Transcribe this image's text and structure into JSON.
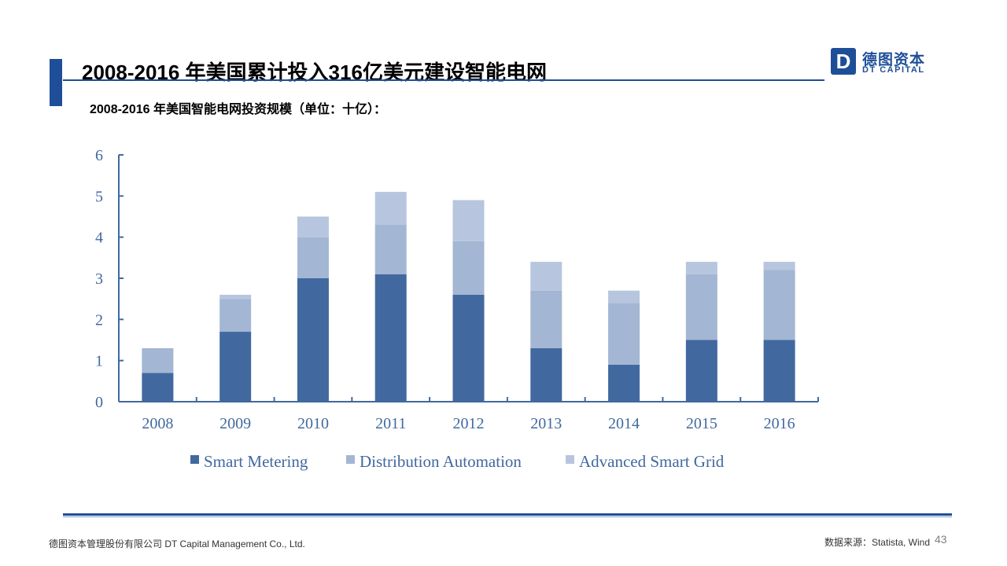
{
  "header": {
    "title": "2008-2016 年美国累计投入316亿美元建设智能电网",
    "subtitle": "2008-2016 年美国智能电网投资规模（单位：十亿）："
  },
  "logo": {
    "mark": "D",
    "cn": "德图资本",
    "en": "DT CAPITAL"
  },
  "footer": {
    "company": "德图资本管理股份有限公司  DT Capital Management Co., Ltd.",
    "source": "数据来源：Statista, Wind",
    "page": "43"
  },
  "colors": {
    "brand": "#1f4e99"
  },
  "chart_data": {
    "type": "bar",
    "stacked": true,
    "title": "",
    "xlabel": "",
    "ylabel": "",
    "ylim": [
      0,
      6
    ],
    "yticks": [
      0,
      1,
      2,
      3,
      4,
      5,
      6
    ],
    "categories": [
      "2008",
      "2009",
      "2010",
      "2011",
      "2012",
      "2013",
      "2014",
      "2015",
      "2016"
    ],
    "series": [
      {
        "name": "Smart Metering",
        "color": "#41699f",
        "values": [
          0.7,
          1.7,
          3.0,
          3.1,
          2.6,
          1.3,
          0.9,
          1.5,
          1.5
        ]
      },
      {
        "name": "Distribution Automation",
        "color": "#a3b6d3",
        "values": [
          0.6,
          0.8,
          1.0,
          1.2,
          1.3,
          1.4,
          1.5,
          1.6,
          1.7
        ]
      },
      {
        "name": "Advanced Smart Grid",
        "color": "#b7c6de",
        "values": [
          0.0,
          0.1,
          0.5,
          0.8,
          1.0,
          0.7,
          0.3,
          0.3,
          0.2
        ]
      }
    ],
    "grid": false,
    "legend": "bottom"
  }
}
